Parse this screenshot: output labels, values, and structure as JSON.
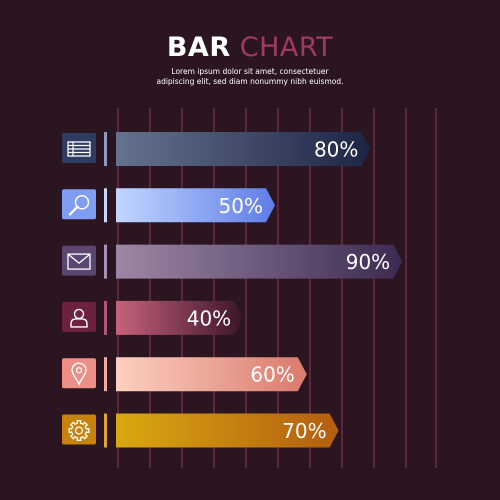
{
  "title": {
    "bold": "BAR",
    "light": "CHART"
  },
  "subtitle": {
    "line1": "Lorem ipsum dolor sit amet, consectetuer",
    "line2": "adipiscing elit, sed diam nonummy nibh euismod."
  },
  "colors": {
    "background": "#2a1520",
    "gridline": "#6a2a48",
    "title_accent": "#a23a60"
  },
  "chart_data": {
    "type": "bar",
    "orientation": "horizontal",
    "title": "BAR CHART",
    "xlabel": "",
    "ylabel": "",
    "xlim": [
      0,
      100
    ],
    "grid": true,
    "categories": [
      "list",
      "search",
      "mail",
      "user",
      "location",
      "settings"
    ],
    "values": [
      80,
      50,
      90,
      40,
      60,
      70
    ],
    "labels": [
      "80%",
      "50%",
      "90%",
      "40%",
      "60%",
      "70%"
    ],
    "icons": [
      "list-icon",
      "search-icon",
      "mail-icon",
      "user-icon",
      "location-pin-icon",
      "gear-icon"
    ],
    "bar_colors": [
      [
        "#65728e",
        "#1d2544"
      ],
      [
        "#c2d6ff",
        "#5f7ce6"
      ],
      [
        "#9c88a4",
        "#3d2a52"
      ],
      [
        "#c7627e",
        "#3b1528"
      ],
      [
        "#fdd0c0",
        "#d97a6c"
      ],
      [
        "#d9a810",
        "#b45d10"
      ]
    ],
    "icon_colors": [
      "#2f3b60",
      "#7f9df3",
      "#5a4670",
      "#6c2140",
      "#ee8f87",
      "#c8830c"
    ],
    "accent_colors": [
      "#8d9bc3",
      "#c9d7ff",
      "#a793b6",
      "#b25377",
      "#f5a79d",
      "#e0a632"
    ]
  }
}
